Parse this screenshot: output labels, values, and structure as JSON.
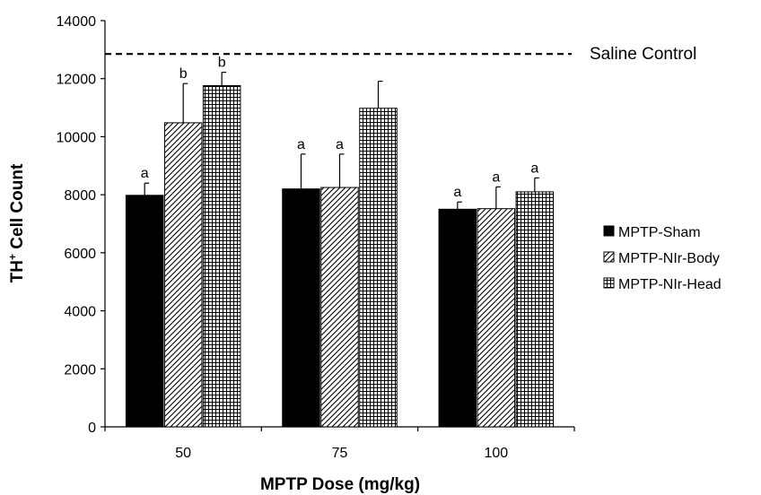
{
  "chart_data": {
    "type": "bar",
    "ylabel_main": "TH",
    "ylabel_sup": "+",
    "ylabel_rest": " Cell Count",
    "xlabel": "MPTP Dose (mg/kg)",
    "categories": [
      "50",
      "75",
      "100"
    ],
    "ylim": [
      0,
      14000
    ],
    "yticks": [
      0,
      2000,
      4000,
      6000,
      8000,
      10000,
      12000,
      14000
    ],
    "grid": false,
    "legend_position": "right",
    "reference_line": {
      "label": "Saline Control",
      "value": 12850,
      "style": "dashed"
    },
    "series": [
      {
        "name": "MPTP-Sham",
        "pattern": "solid",
        "values": [
          7980,
          8200,
          7500
        ],
        "errors": [
          420,
          1200,
          250
        ],
        "labels": [
          "a",
          "a",
          "a"
        ]
      },
      {
        "name": "MPTP-NIr-Body",
        "pattern": "diagonal",
        "values": [
          10480,
          8250,
          7520
        ],
        "errors": [
          1350,
          1150,
          750
        ],
        "labels": [
          "b",
          "a",
          "a"
        ]
      },
      {
        "name": "MPTP-NIr-Head",
        "pattern": "grid",
        "values": [
          11760,
          10980,
          8100
        ],
        "errors": [
          460,
          930,
          480
        ],
        "labels": [
          "b",
          "",
          "a"
        ]
      }
    ]
  }
}
